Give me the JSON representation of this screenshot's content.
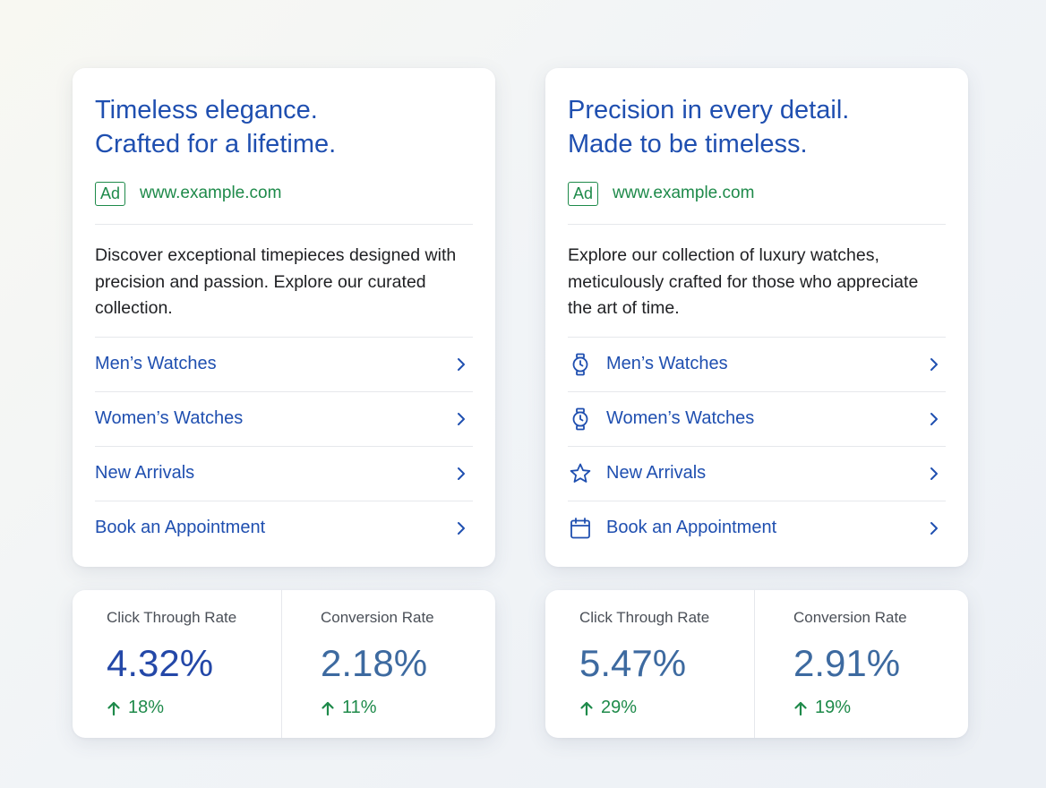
{
  "ads": [
    {
      "headline_line1": "Timeless elegance.",
      "headline_line2": "Crafted for a lifetime.",
      "badge": "Ad",
      "url": "www.example.com",
      "description": "Discover exceptional timepieces designed with precision and passion. Explore our curated collection.",
      "links": [
        {
          "label": "Men’s Watches"
        },
        {
          "label": "Women’s Watches"
        },
        {
          "label": "New Arrivals"
        },
        {
          "label": "Book an Appointment"
        }
      ],
      "stats": [
        {
          "label": "Click Through Rate",
          "value": "4.32%",
          "change": "18%"
        },
        {
          "label": "Conversion Rate",
          "value": "2.18%",
          "change": "11%"
        }
      ]
    },
    {
      "headline_line1": "Precision in every detail.",
      "headline_line2": "Made to be timeless.",
      "badge": "Ad",
      "url": "www.example.com",
      "description": "Explore our collection of luxury watches, meticulously crafted for those who appreciate the art of time.",
      "links": [
        {
          "label": "Men’s Watches",
          "icon": "watch-icon"
        },
        {
          "label": "Women’s Watches",
          "icon": "watch-icon"
        },
        {
          "label": "New Arrivals",
          "icon": "star-icon"
        },
        {
          "label": "Book an Appointment",
          "icon": "calendar-icon"
        }
      ],
      "stats": [
        {
          "label": "Click Through Rate",
          "value": "5.47%",
          "change": "29%"
        },
        {
          "label": "Conversion Rate",
          "value": "2.91%",
          "change": "19%"
        }
      ]
    }
  ],
  "colors": {
    "headline": "#1f4fb0",
    "green": "#1e8a4a",
    "ctr_value": "#2448a8",
    "conversion_value": "#3d6aa0"
  }
}
